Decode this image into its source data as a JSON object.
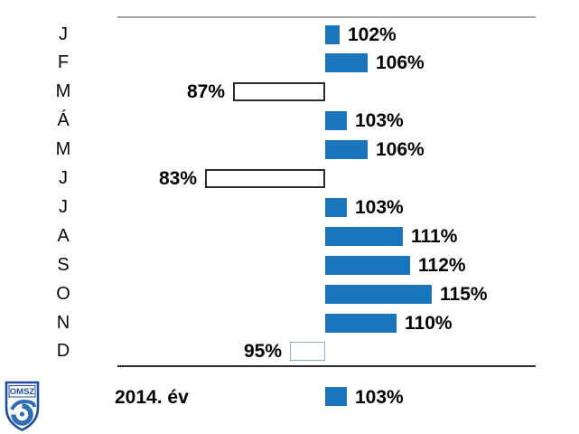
{
  "chart_data": {
    "type": "bar",
    "orientation": "horizontal",
    "unit": "%",
    "baseline_value": 100,
    "title": "",
    "xlabel": "",
    "ylabel": "",
    "categories": [
      "J",
      "F",
      "M",
      "Á",
      "M",
      "J",
      "J",
      "A",
      "S",
      "O",
      "N",
      "D"
    ],
    "values": [
      102,
      106,
      87,
      103,
      106,
      83,
      103,
      111,
      112,
      115,
      110,
      95
    ],
    "rows": [
      {
        "month": "J",
        "value": 102,
        "label": "102%",
        "bar": "filled"
      },
      {
        "month": "F",
        "value": 106,
        "label": "106%",
        "bar": "filled"
      },
      {
        "month": "M",
        "value": 87,
        "label": "87%",
        "bar": "open"
      },
      {
        "month": "Á",
        "value": 103,
        "label": "103%",
        "bar": "filled"
      },
      {
        "month": "M",
        "value": 106,
        "label": "106%",
        "bar": "filled"
      },
      {
        "month": "J",
        "value": 83,
        "label": "83%",
        "bar": "open"
      },
      {
        "month": "J",
        "value": 103,
        "label": "103%",
        "bar": "filled"
      },
      {
        "month": "A",
        "value": 111,
        "label": "111%",
        "bar": "filled"
      },
      {
        "month": "S",
        "value": 112,
        "label": "112%",
        "bar": "filled"
      },
      {
        "month": "O",
        "value": 115,
        "label": "115%",
        "bar": "filled"
      },
      {
        "month": "N",
        "value": 110,
        "label": "110%",
        "bar": "filled"
      },
      {
        "month": "D",
        "value": 95,
        "label": "95%",
        "bar": "open-light"
      }
    ],
    "summary": {
      "label": "2014. év",
      "value": 103,
      "text": "103%"
    },
    "colors": {
      "bar_blue": "#1b75bc",
      "open_bar_fill": "#ffffff",
      "open_border_dark": "#2b2b2b",
      "open_border_light": "#94aacb",
      "top_axis_line": "#a3a3a3",
      "bottom_axis_line": "#2b2b2b"
    },
    "layout_hints": {
      "grid": false,
      "legend": "none",
      "baseline_axis": "vertical at 100%"
    }
  },
  "logo": {
    "text": "OMSZ",
    "border_color": "#1f4e9c",
    "wave_color": "#2e6db4"
  }
}
